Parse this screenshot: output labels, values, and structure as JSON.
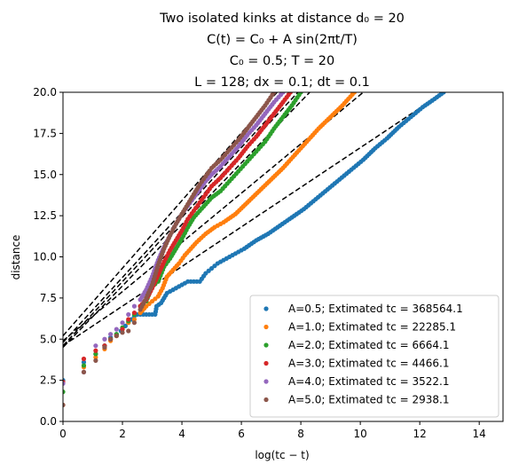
{
  "chart_data": {
    "type": "scatter",
    "title_lines": [
      "Two isolated kinks at distance d₀ = 20",
      "C(t) = C₀ + A sin(2πt/T)",
      "C₀ = 0.5; T = 20",
      "L = 128; dx = 0.1; dt = 0.1"
    ],
    "xlabel": "log(tᴄ − t)",
    "ylabel": "distance",
    "xlim": [
      0,
      14.8
    ],
    "ylim": [
      0,
      20
    ],
    "xticks": [
      "0",
      "2",
      "4",
      "6",
      "8",
      "10",
      "12",
      "14"
    ],
    "yticks": [
      "0.0",
      "2.5",
      "5.0",
      "7.5",
      "10.0",
      "12.5",
      "15.0",
      "17.5",
      "20.0"
    ],
    "grid": false,
    "legend_position": "lower-right",
    "series": [
      {
        "name": "A=0.5; Extimated tc = 368564.1",
        "color": "#1f77b4",
        "points": [
          [
            0,
            2.5
          ],
          [
            0.7,
            3.6
          ],
          [
            1.1,
            4.1
          ],
          [
            1.4,
            4.6
          ],
          [
            1.6,
            5.1
          ],
          [
            1.8,
            5.3
          ],
          [
            1.95,
            5.5
          ],
          [
            2.1,
            5.8
          ],
          [
            2.2,
            6.0
          ],
          [
            2.3,
            6.2
          ],
          [
            2.4,
            6.4
          ],
          [
            2.5,
            6.5
          ],
          [
            2.7,
            6.5
          ],
          [
            2.9,
            6.5
          ],
          [
            3.1,
            6.5
          ],
          [
            3.15,
            7.0
          ],
          [
            3.3,
            7.2
          ],
          [
            3.4,
            7.5
          ],
          [
            3.5,
            7.8
          ],
          [
            3.7,
            8.0
          ],
          [
            3.9,
            8.2
          ],
          [
            4.2,
            8.5
          ],
          [
            4.6,
            8.5
          ],
          [
            4.8,
            9.0
          ],
          [
            5.0,
            9.3
          ],
          [
            5.2,
            9.6
          ],
          [
            5.5,
            9.9
          ],
          [
            5.8,
            10.2
          ],
          [
            6.1,
            10.5
          ],
          [
            6.5,
            11.0
          ],
          [
            6.9,
            11.4
          ],
          [
            7.3,
            11.9
          ],
          [
            7.7,
            12.4
          ],
          [
            8.1,
            12.9
          ],
          [
            8.5,
            13.5
          ],
          [
            8.9,
            14.1
          ],
          [
            9.3,
            14.7
          ],
          [
            9.7,
            15.3
          ],
          [
            10.1,
            15.9
          ],
          [
            10.5,
            16.6
          ],
          [
            10.9,
            17.2
          ],
          [
            11.3,
            17.9
          ],
          [
            11.7,
            18.5
          ],
          [
            12.1,
            19.1
          ],
          [
            12.5,
            19.6
          ],
          [
            12.8,
            20.0
          ]
        ],
        "fit": [
          [
            0,
            4.6
          ],
          [
            12.8,
            20.0
          ]
        ]
      },
      {
        "name": "A=1.0; Extimated tc = 22285.1",
        "color": "#ff7f0e",
        "points": [
          [
            0,
            1.0
          ],
          [
            0.7,
            3.3
          ],
          [
            1.1,
            3.9
          ],
          [
            1.4,
            4.4
          ],
          [
            1.6,
            4.9
          ],
          [
            1.8,
            5.2
          ],
          [
            2.0,
            5.6
          ],
          [
            2.2,
            6.0
          ],
          [
            2.4,
            6.2
          ],
          [
            2.6,
            6.6
          ],
          [
            2.8,
            7.0
          ],
          [
            3.0,
            7.3
          ],
          [
            3.2,
            7.6
          ],
          [
            3.35,
            8.1
          ],
          [
            3.5,
            8.8
          ],
          [
            3.7,
            9.2
          ],
          [
            3.9,
            9.6
          ],
          [
            4.1,
            10.1
          ],
          [
            4.3,
            10.5
          ],
          [
            4.5,
            10.9
          ],
          [
            4.8,
            11.4
          ],
          [
            5.1,
            11.8
          ],
          [
            5.4,
            12.1
          ],
          [
            5.8,
            12.6
          ],
          [
            6.2,
            13.3
          ],
          [
            6.6,
            14.0
          ],
          [
            7.0,
            14.7
          ],
          [
            7.4,
            15.4
          ],
          [
            7.8,
            16.2
          ],
          [
            8.2,
            17.0
          ],
          [
            8.6,
            17.8
          ],
          [
            9.0,
            18.5
          ],
          [
            9.4,
            19.2
          ],
          [
            9.8,
            20.0
          ]
        ],
        "fit": [
          [
            0,
            4.9
          ],
          [
            10.1,
            20.0
          ]
        ]
      },
      {
        "name": "A=2.0; Extimated tc = 6664.1",
        "color": "#2ca02c",
        "points": [
          [
            0,
            1.8
          ],
          [
            0.7,
            3.4
          ],
          [
            1.1,
            4.1
          ],
          [
            1.4,
            4.6
          ],
          [
            1.6,
            5.0
          ],
          [
            1.8,
            5.3
          ],
          [
            2.0,
            5.7
          ],
          [
            2.2,
            6.1
          ],
          [
            2.4,
            6.5
          ],
          [
            2.6,
            7.0
          ],
          [
            2.8,
            7.3
          ],
          [
            3.0,
            8.2
          ],
          [
            3.2,
            8.5
          ],
          [
            3.4,
            9.4
          ],
          [
            3.6,
            9.9
          ],
          [
            3.8,
            10.5
          ],
          [
            4.0,
            11.1
          ],
          [
            4.2,
            11.8
          ],
          [
            4.4,
            12.4
          ],
          [
            4.6,
            12.8
          ],
          [
            4.8,
            13.2
          ],
          [
            5.0,
            13.6
          ],
          [
            5.3,
            14.0
          ],
          [
            5.6,
            14.6
          ],
          [
            5.9,
            15.2
          ],
          [
            6.2,
            15.8
          ],
          [
            6.5,
            16.4
          ],
          [
            6.8,
            17.0
          ],
          [
            7.1,
            17.8
          ],
          [
            7.4,
            18.5
          ],
          [
            7.7,
            19.2
          ],
          [
            8.0,
            20.0
          ]
        ],
        "fit": [
          [
            0,
            4.5
          ],
          [
            8.3,
            20.0
          ]
        ]
      },
      {
        "name": "A=3.0; Extimated tc = 4466.1",
        "color": "#d62728",
        "points": [
          [
            0,
            2.4
          ],
          [
            0.7,
            3.8
          ],
          [
            1.1,
            4.3
          ],
          [
            1.4,
            4.6
          ],
          [
            1.6,
            5.0
          ],
          [
            1.8,
            5.2
          ],
          [
            2.0,
            5.6
          ],
          [
            2.2,
            6.2
          ],
          [
            2.4,
            6.6
          ],
          [
            2.6,
            7.0
          ],
          [
            2.8,
            7.4
          ],
          [
            3.0,
            8.1
          ],
          [
            3.2,
            8.9
          ],
          [
            3.4,
            9.7
          ],
          [
            3.6,
            10.4
          ],
          [
            3.8,
            11.0
          ],
          [
            4.0,
            11.6
          ],
          [
            4.2,
            12.3
          ],
          [
            4.4,
            12.8
          ],
          [
            4.6,
            13.3
          ],
          [
            4.8,
            13.8
          ],
          [
            5.0,
            14.3
          ],
          [
            5.3,
            14.8
          ],
          [
            5.6,
            15.4
          ],
          [
            5.9,
            16.0
          ],
          [
            6.2,
            16.7
          ],
          [
            6.5,
            17.3
          ],
          [
            6.8,
            18.0
          ],
          [
            7.1,
            18.7
          ],
          [
            7.4,
            19.4
          ],
          [
            7.65,
            20.0
          ]
        ],
        "fit": [
          [
            0,
            4.6
          ],
          [
            7.9,
            20.0
          ]
        ]
      },
      {
        "name": "A=4.0; Extimated tc = 3522.1",
        "color": "#9467bd",
        "points": [
          [
            0,
            2.3
          ],
          [
            0.7,
            3.0
          ],
          [
            1.1,
            4.6
          ],
          [
            1.4,
            5.0
          ],
          [
            1.6,
            5.3
          ],
          [
            1.8,
            5.6
          ],
          [
            2.0,
            6.0
          ],
          [
            2.2,
            6.5
          ],
          [
            2.4,
            7.0
          ],
          [
            2.6,
            7.4
          ],
          [
            2.8,
            8.0
          ],
          [
            3.0,
            8.8
          ],
          [
            3.2,
            9.8
          ],
          [
            3.4,
            10.6
          ],
          [
            3.6,
            11.3
          ],
          [
            3.8,
            12.0
          ],
          [
            4.0,
            12.6
          ],
          [
            4.2,
            13.1
          ],
          [
            4.4,
            13.6
          ],
          [
            4.6,
            14.1
          ],
          [
            4.8,
            14.6
          ],
          [
            5.0,
            15.0
          ],
          [
            5.3,
            15.5
          ],
          [
            5.6,
            16.1
          ],
          [
            5.9,
            16.7
          ],
          [
            6.2,
            17.4
          ],
          [
            6.5,
            18.0
          ],
          [
            6.8,
            18.7
          ],
          [
            7.1,
            19.4
          ],
          [
            7.4,
            20.0
          ]
        ],
        "fit": [
          [
            0,
            4.8
          ],
          [
            7.7,
            20.0
          ]
        ]
      },
      {
        "name": "A=5.0; Extimated tc = 2938.1",
        "color": "#8c564b",
        "points": [
          [
            0,
            1.0
          ],
          [
            0.7,
            3.0
          ],
          [
            1.1,
            3.7
          ],
          [
            1.4,
            4.5
          ],
          [
            1.6,
            5.0
          ],
          [
            1.8,
            5.2
          ],
          [
            2.0,
            5.4
          ],
          [
            2.2,
            5.5
          ],
          [
            2.4,
            6.0
          ],
          [
            2.6,
            6.8
          ],
          [
            2.8,
            7.5
          ],
          [
            3.0,
            8.3
          ],
          [
            3.2,
            9.5
          ],
          [
            3.4,
            10.5
          ],
          [
            3.6,
            11.3
          ],
          [
            3.8,
            12.0
          ],
          [
            4.0,
            12.6
          ],
          [
            4.2,
            13.2
          ],
          [
            4.4,
            13.8
          ],
          [
            4.6,
            14.4
          ],
          [
            4.8,
            14.9
          ],
          [
            5.0,
            15.4
          ],
          [
            5.3,
            15.9
          ],
          [
            5.6,
            16.5
          ],
          [
            5.9,
            17.1
          ],
          [
            6.2,
            17.8
          ],
          [
            6.5,
            18.5
          ],
          [
            6.8,
            19.2
          ],
          [
            7.1,
            20.0
          ]
        ],
        "fit": [
          [
            0,
            5.2
          ],
          [
            7.2,
            20.0
          ]
        ]
      }
    ]
  }
}
